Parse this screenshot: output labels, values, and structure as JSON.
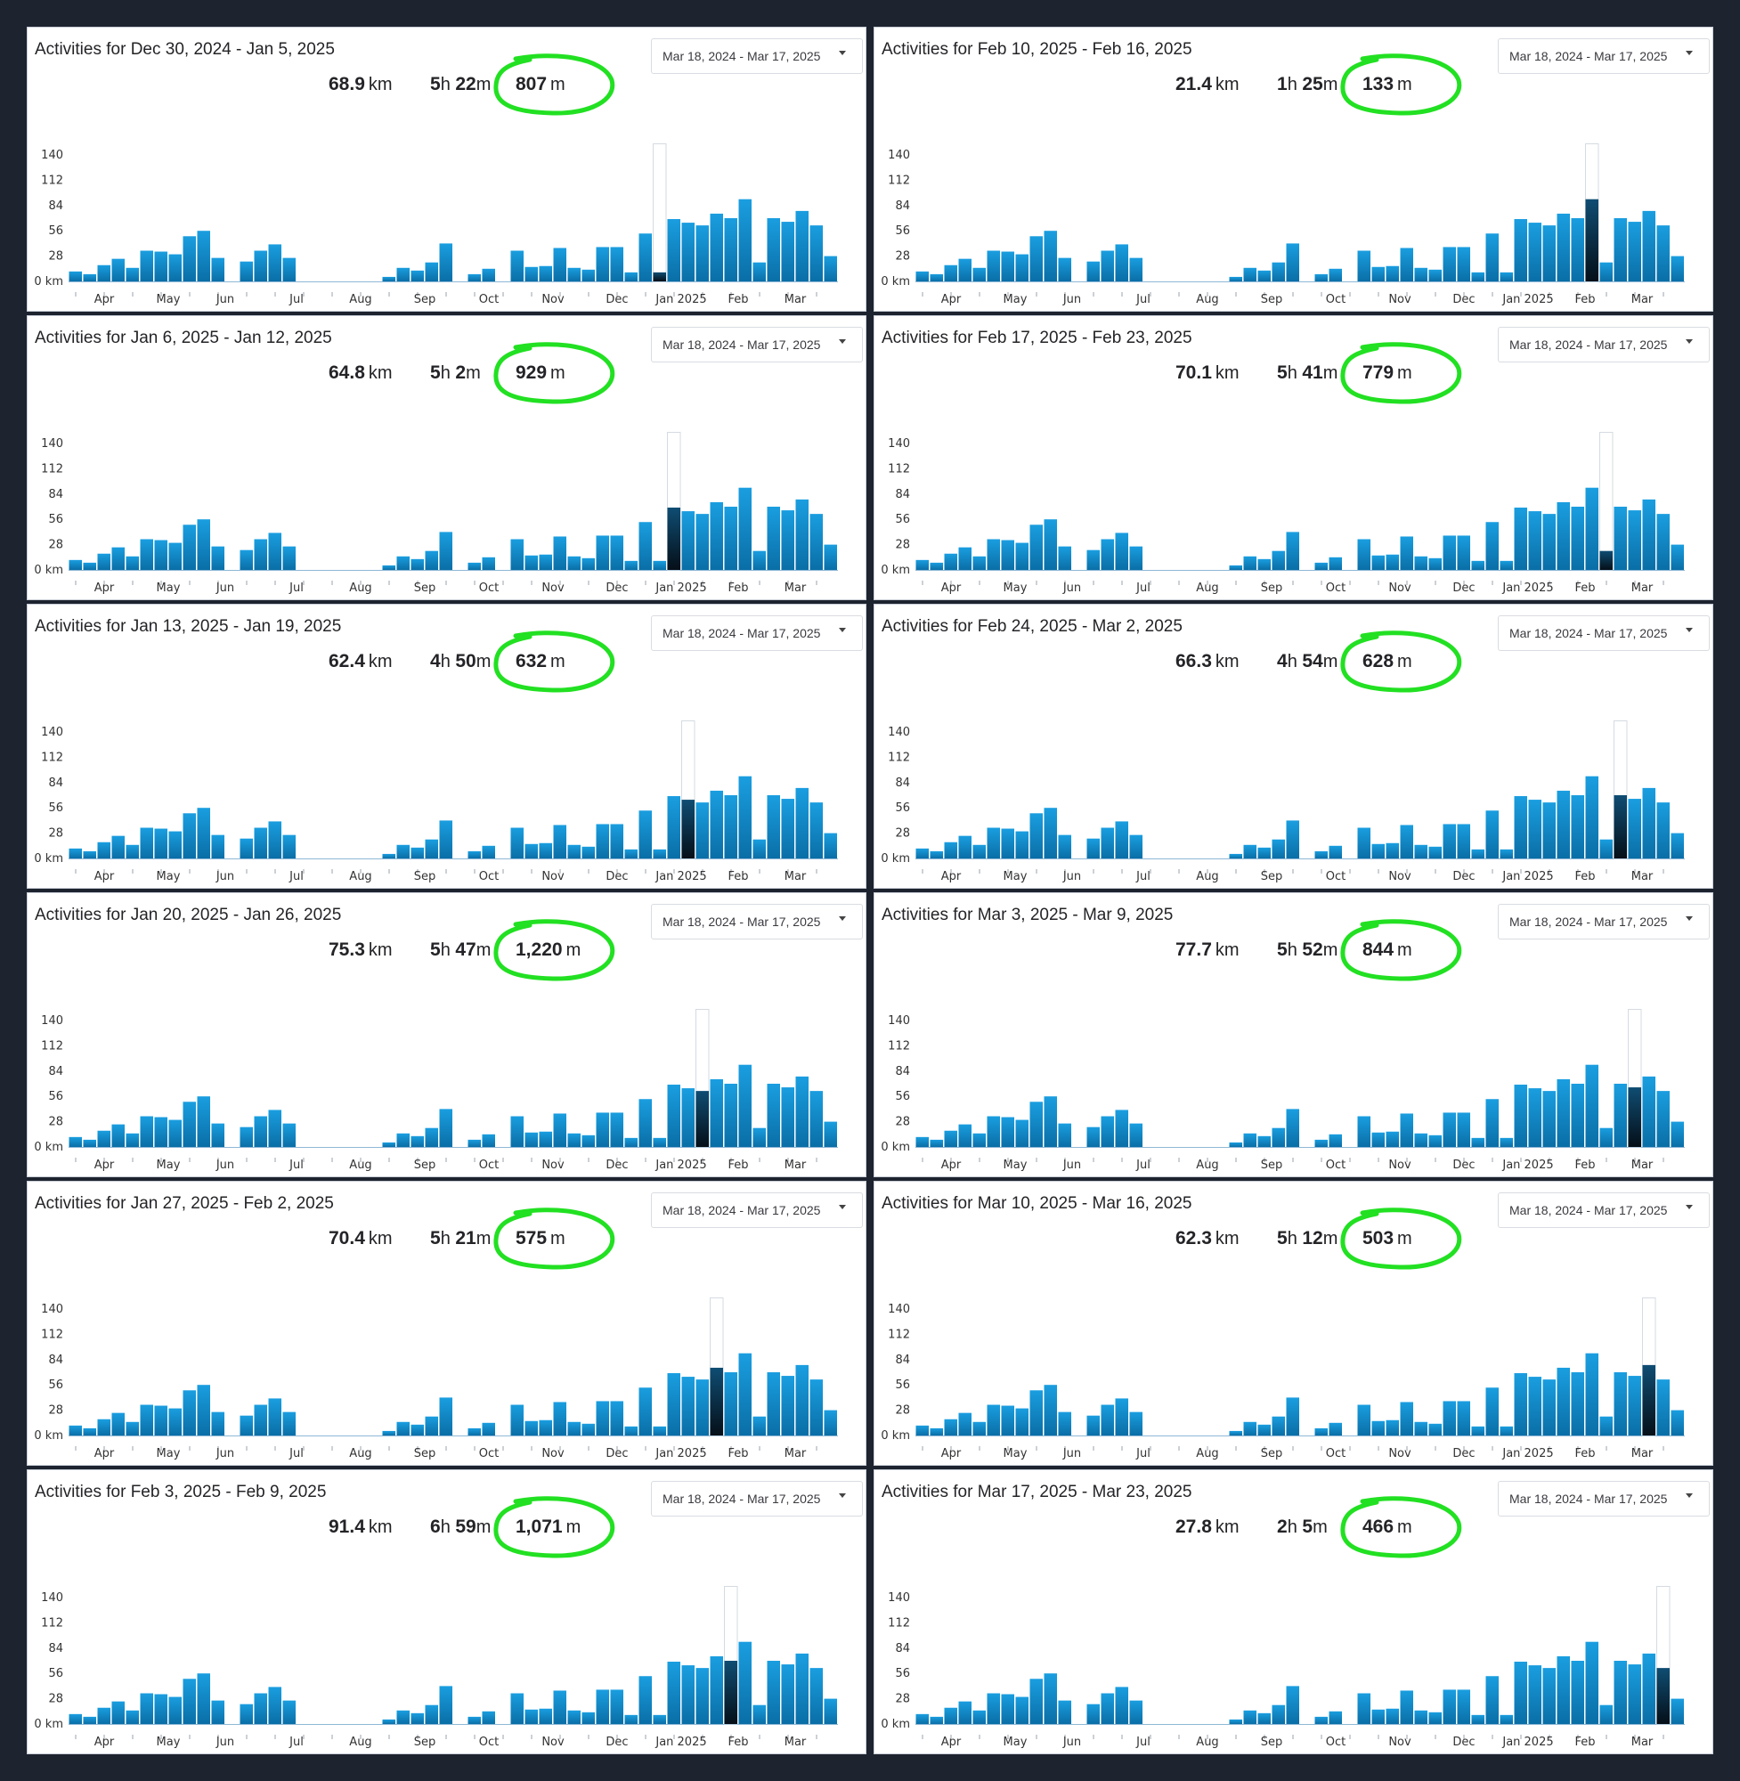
{
  "ui": {
    "accent_bar_color": "#1590cf",
    "selected_bar_color": "#0b2538",
    "highlight_circle_color": "#22e022",
    "axis_y_ticks": [
      "0 km",
      "28",
      "56",
      "84",
      "112",
      "140"
    ],
    "axis_x_months": [
      "Apr",
      "May",
      "Jun",
      "Jul",
      "Aug",
      "Sep",
      "Oct",
      "Nov",
      "Dec",
      "Jan 2025",
      "Feb",
      "Mar"
    ]
  },
  "panels": [
    {
      "title": "Activities for Dec 30, 2024 - Jan 5, 2025",
      "range": "Mar 18, 2024 - Mar 17, 2025",
      "distance": "68.9",
      "distance_unit": "km",
      "hours": "5",
      "minutes": "22",
      "elevation": "807",
      "elevation_unit": "m",
      "selected_week": 41
    },
    {
      "title": "Activities for Feb 10, 2025 - Feb 16, 2025",
      "range": "Mar 18, 2024 - Mar 17, 2025",
      "distance": "21.4",
      "distance_unit": "km",
      "hours": "1",
      "minutes": "25",
      "elevation": "133",
      "elevation_unit": "m",
      "selected_week": 47
    },
    {
      "title": "Activities for Jan 6, 2025 - Jan 12, 2025",
      "range": "Mar 18, 2024 - Mar 17, 2025",
      "distance": "64.8",
      "distance_unit": "km",
      "hours": "5",
      "minutes": "2",
      "elevation": "929",
      "elevation_unit": "m",
      "selected_week": 42
    },
    {
      "title": "Activities for Feb 17, 2025 - Feb 23, 2025",
      "range": "Mar 18, 2024 - Mar 17, 2025",
      "distance": "70.1",
      "distance_unit": "km",
      "hours": "5",
      "minutes": "41",
      "elevation": "779",
      "elevation_unit": "m",
      "selected_week": 48
    },
    {
      "title": "Activities for Jan 13, 2025 - Jan 19, 2025",
      "range": "Mar 18, 2024 - Mar 17, 2025",
      "distance": "62.4",
      "distance_unit": "km",
      "hours": "4",
      "minutes": "50",
      "elevation": "632",
      "elevation_unit": "m",
      "selected_week": 43
    },
    {
      "title": "Activities for Feb 24, 2025 - Mar 2, 2025",
      "range": "Mar 18, 2024 - Mar 17, 2025",
      "distance": "66.3",
      "distance_unit": "km",
      "hours": "4",
      "minutes": "54",
      "elevation": "628",
      "elevation_unit": "m",
      "selected_week": 49
    },
    {
      "title": "Activities for Jan 20, 2025 - Jan 26, 2025",
      "range": "Mar 18, 2024 - Mar 17, 2025",
      "distance": "75.3",
      "distance_unit": "km",
      "hours": "5",
      "minutes": "47",
      "elevation": "1,220",
      "elevation_unit": "m",
      "selected_week": 44
    },
    {
      "title": "Activities for Mar 3, 2025 - Mar 9, 2025",
      "range": "Mar 18, 2024 - Mar 17, 2025",
      "distance": "77.7",
      "distance_unit": "km",
      "hours": "5",
      "minutes": "52",
      "elevation": "844",
      "elevation_unit": "m",
      "selected_week": 50
    },
    {
      "title": "Activities for Jan 27, 2025 - Feb 2, 2025",
      "range": "Mar 18, 2024 - Mar 17, 2025",
      "distance": "70.4",
      "distance_unit": "km",
      "hours": "5",
      "minutes": "21",
      "elevation": "575",
      "elevation_unit": "m",
      "selected_week": 45
    },
    {
      "title": "Activities for Mar 10, 2025 - Mar 16, 2025",
      "range": "Mar 18, 2024 - Mar 17, 2025",
      "distance": "62.3",
      "distance_unit": "km",
      "hours": "5",
      "minutes": "12",
      "elevation": "503",
      "elevation_unit": "m",
      "selected_week": 51
    },
    {
      "title": "Activities for Feb 3, 2025 - Feb 9, 2025",
      "range": "Mar 18, 2024 - Mar 17, 2025",
      "distance": "91.4",
      "distance_unit": "km",
      "hours": "6",
      "minutes": "59",
      "elevation": "1,071",
      "elevation_unit": "m",
      "selected_week": 46
    },
    {
      "title": "Activities for Mar 17, 2025 - Mar 23, 2025",
      "range": "Mar 18, 2024 - Mar 17, 2025",
      "distance": "27.8",
      "distance_unit": "km",
      "hours": "2",
      "minutes": "5",
      "elevation": "466",
      "elevation_unit": "m",
      "selected_week": 52
    }
  ],
  "chart_data": {
    "type": "bar",
    "ylabel": "km",
    "ylim": [
      0,
      140
    ],
    "y_ticks": [
      0,
      28,
      56,
      84,
      112,
      140
    ],
    "x_months": [
      "Apr",
      "May",
      "Jun",
      "Jul",
      "Aug",
      "Sep",
      "Oct",
      "Nov",
      "Dec",
      "Jan 2025",
      "Feb",
      "Mar"
    ],
    "weekly_km": [
      11,
      8,
      18,
      25,
      15,
      34,
      33,
      30,
      50,
      56,
      26,
      0,
      22,
      34,
      41,
      26,
      0,
      0,
      0,
      0,
      0,
      0,
      5,
      15,
      12,
      21,
      42,
      0,
      8,
      14,
      0,
      34,
      16,
      17,
      37,
      15,
      13,
      38,
      38,
      10,
      53,
      10,
      69,
      65,
      62,
      75,
      70,
      91,
      21,
      70,
      66,
      78,
      62,
      28
    ]
  }
}
